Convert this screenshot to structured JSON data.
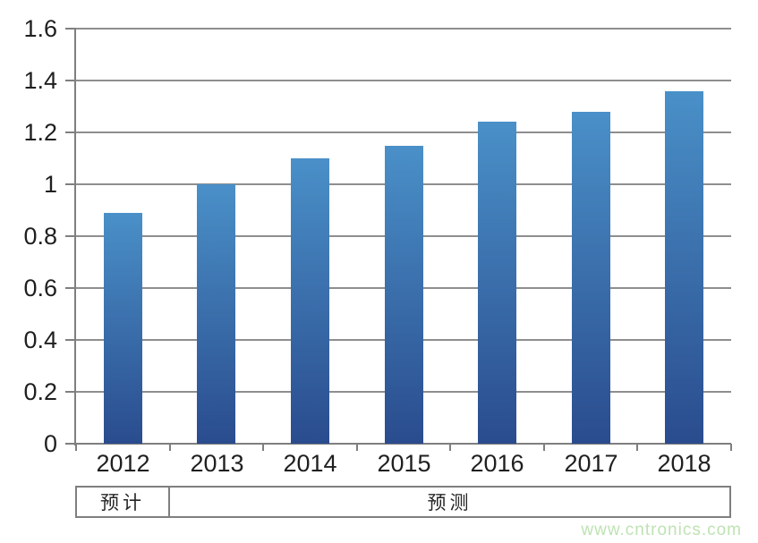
{
  "chart_data": {
    "type": "bar",
    "categories": [
      "2012",
      "2013",
      "2014",
      "2015",
      "2016",
      "2017",
      "2018"
    ],
    "values": [
      0.89,
      1.0,
      1.1,
      1.15,
      1.24,
      1.28,
      1.36
    ],
    "title": "",
    "xlabel": "",
    "ylabel": "",
    "ylim": [
      0,
      1.6
    ],
    "ytick_step": 0.2,
    "ytick_labels": [
      "1.6",
      "1.4",
      "1.2",
      "1",
      "0.8",
      "0.6",
      "0.4",
      "0.2",
      "0"
    ],
    "grid": true,
    "legend": "none",
    "bar_color_top": "#4a90c8",
    "bar_color_bottom": "#2a4c8e",
    "gridline_color": "#8e8e8e",
    "axis_color": "#7f7f7f",
    "label_color": "#1f1f1f"
  },
  "annotation_row": {
    "cells": [
      {
        "label": "预计",
        "span_categories": 1
      },
      {
        "label": "预测",
        "span_categories": 6
      }
    ]
  },
  "watermark": {
    "text": "www.cntronics.com",
    "color": "#bee3b3"
  }
}
